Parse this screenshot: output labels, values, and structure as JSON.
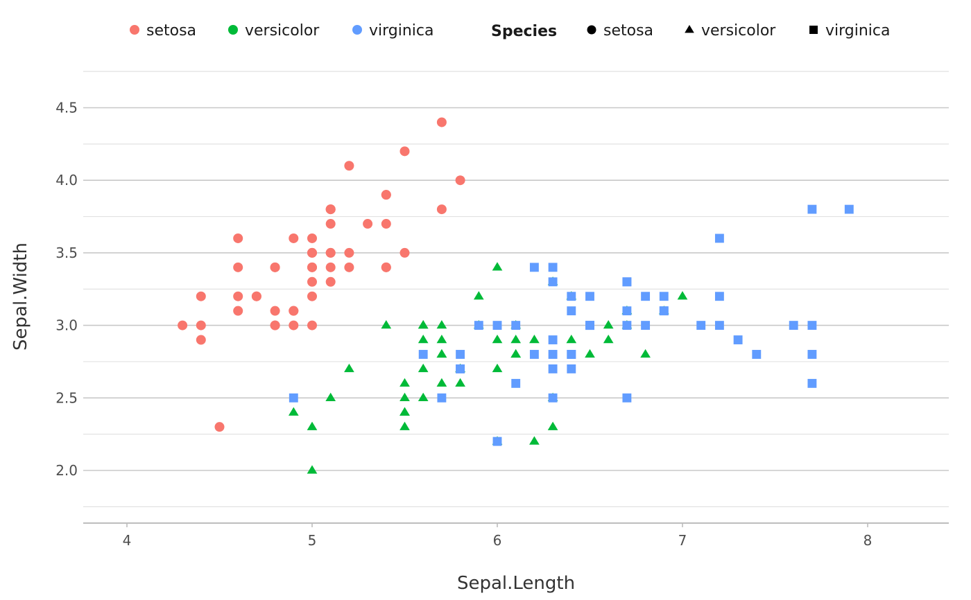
{
  "chart_data": {
    "type": "scatter",
    "xlabel": "Sepal.Length",
    "ylabel": "Sepal.Width",
    "xlim": [
      3.77,
      8.44
    ],
    "ylim": [
      1.65,
      4.75
    ],
    "x_ticks": [
      4,
      5,
      6,
      7,
      8
    ],
    "x_tick_labels": [
      "4",
      "5",
      "6",
      "7",
      "8"
    ],
    "y_ticks": [
      2.0,
      2.5,
      3.0,
      3.5,
      4.0,
      4.5
    ],
    "y_tick_labels": [
      "2.0",
      "2.5",
      "3.0",
      "3.5",
      "4.0",
      "4.5"
    ],
    "grid": true,
    "legend_position": "top",
    "color_legend": {
      "entries": [
        "setosa",
        "versicolor",
        "virginica"
      ]
    },
    "shape_legend": {
      "title": "Species",
      "entries": [
        "setosa",
        "versicolor",
        "virginica"
      ]
    },
    "series": [
      {
        "name": "setosa",
        "color": "#F8766D",
        "shape": "circle",
        "points": [
          [
            5.1,
            3.5
          ],
          [
            4.9,
            3.0
          ],
          [
            4.7,
            3.2
          ],
          [
            4.6,
            3.1
          ],
          [
            5.0,
            3.6
          ],
          [
            5.4,
            3.9
          ],
          [
            4.6,
            3.4
          ],
          [
            5.0,
            3.4
          ],
          [
            4.4,
            2.9
          ],
          [
            4.9,
            3.1
          ],
          [
            5.4,
            3.7
          ],
          [
            4.8,
            3.4
          ],
          [
            4.8,
            3.0
          ],
          [
            4.3,
            3.0
          ],
          [
            5.8,
            4.0
          ],
          [
            5.7,
            4.4
          ],
          [
            5.4,
            3.9
          ],
          [
            5.1,
            3.5
          ],
          [
            5.7,
            3.8
          ],
          [
            5.1,
            3.8
          ],
          [
            5.4,
            3.4
          ],
          [
            5.1,
            3.7
          ],
          [
            4.6,
            3.6
          ],
          [
            5.1,
            3.3
          ],
          [
            4.8,
            3.4
          ],
          [
            5.0,
            3.0
          ],
          [
            5.0,
            3.4
          ],
          [
            5.2,
            3.5
          ],
          [
            5.2,
            3.4
          ],
          [
            4.7,
            3.2
          ],
          [
            4.8,
            3.1
          ],
          [
            5.4,
            3.4
          ],
          [
            5.2,
            4.1
          ],
          [
            5.5,
            4.2
          ],
          [
            4.9,
            3.1
          ],
          [
            5.0,
            3.2
          ],
          [
            5.5,
            3.5
          ],
          [
            4.9,
            3.6
          ],
          [
            4.4,
            3.0
          ],
          [
            5.1,
            3.4
          ],
          [
            5.0,
            3.5
          ],
          [
            4.5,
            2.3
          ],
          [
            4.4,
            3.2
          ],
          [
            5.0,
            3.5
          ],
          [
            5.1,
            3.8
          ],
          [
            4.8,
            3.0
          ],
          [
            5.1,
            3.8
          ],
          [
            4.6,
            3.2
          ],
          [
            5.3,
            3.7
          ],
          [
            5.0,
            3.3
          ]
        ]
      },
      {
        "name": "versicolor",
        "color": "#00BA38",
        "shape": "triangle",
        "points": [
          [
            7.0,
            3.2
          ],
          [
            6.4,
            3.2
          ],
          [
            6.9,
            3.1
          ],
          [
            5.5,
            2.3
          ],
          [
            6.5,
            2.8
          ],
          [
            5.7,
            2.8
          ],
          [
            6.3,
            3.3
          ],
          [
            4.9,
            2.4
          ],
          [
            6.6,
            2.9
          ],
          [
            5.2,
            2.7
          ],
          [
            5.0,
            2.0
          ],
          [
            5.9,
            3.0
          ],
          [
            6.0,
            2.2
          ],
          [
            6.1,
            2.9
          ],
          [
            5.6,
            2.9
          ],
          [
            6.7,
            3.1
          ],
          [
            5.6,
            3.0
          ],
          [
            5.8,
            2.7
          ],
          [
            6.2,
            2.2
          ],
          [
            5.6,
            2.5
          ],
          [
            5.9,
            3.2
          ],
          [
            6.1,
            2.8
          ],
          [
            6.3,
            2.5
          ],
          [
            6.1,
            2.8
          ],
          [
            6.4,
            2.9
          ],
          [
            6.6,
            3.0
          ],
          [
            6.8,
            2.8
          ],
          [
            6.7,
            3.0
          ],
          [
            6.0,
            2.9
          ],
          [
            5.7,
            2.6
          ],
          [
            5.5,
            2.4
          ],
          [
            5.5,
            2.4
          ],
          [
            5.8,
            2.7
          ],
          [
            6.0,
            2.7
          ],
          [
            5.4,
            3.0
          ],
          [
            6.0,
            3.4
          ],
          [
            6.7,
            3.1
          ],
          [
            6.3,
            2.3
          ],
          [
            5.6,
            3.0
          ],
          [
            5.5,
            2.5
          ],
          [
            5.5,
            2.6
          ],
          [
            6.1,
            3.0
          ],
          [
            5.8,
            2.6
          ],
          [
            5.0,
            2.3
          ],
          [
            5.6,
            2.7
          ],
          [
            5.7,
            3.0
          ],
          [
            5.7,
            2.9
          ],
          [
            6.2,
            2.9
          ],
          [
            5.1,
            2.5
          ],
          [
            5.7,
            2.8
          ]
        ]
      },
      {
        "name": "virginica",
        "color": "#619CFF",
        "shape": "square",
        "points": [
          [
            6.3,
            3.3
          ],
          [
            5.8,
            2.7
          ],
          [
            7.1,
            3.0
          ],
          [
            6.3,
            2.9
          ],
          [
            6.5,
            3.0
          ],
          [
            7.6,
            3.0
          ],
          [
            4.9,
            2.5
          ],
          [
            7.3,
            2.9
          ],
          [
            6.7,
            2.5
          ],
          [
            7.2,
            3.6
          ],
          [
            6.5,
            3.2
          ],
          [
            6.4,
            2.7
          ],
          [
            6.8,
            3.0
          ],
          [
            5.7,
            2.5
          ],
          [
            5.8,
            2.8
          ],
          [
            6.4,
            3.2
          ],
          [
            6.5,
            3.0
          ],
          [
            7.7,
            3.8
          ],
          [
            7.7,
            2.6
          ],
          [
            6.0,
            2.2
          ],
          [
            6.9,
            3.2
          ],
          [
            5.6,
            2.8
          ],
          [
            7.7,
            2.8
          ],
          [
            6.3,
            2.7
          ],
          [
            6.7,
            3.3
          ],
          [
            7.2,
            3.2
          ],
          [
            6.2,
            2.8
          ],
          [
            6.1,
            3.0
          ],
          [
            6.4,
            2.8
          ],
          [
            7.2,
            3.0
          ],
          [
            7.4,
            2.8
          ],
          [
            7.9,
            3.8
          ],
          [
            6.4,
            2.8
          ],
          [
            6.3,
            2.8
          ],
          [
            6.1,
            2.6
          ],
          [
            7.7,
            3.0
          ],
          [
            6.3,
            3.4
          ],
          [
            6.4,
            3.1
          ],
          [
            6.0,
            3.0
          ],
          [
            6.9,
            3.1
          ],
          [
            6.7,
            3.1
          ],
          [
            6.9,
            3.1
          ],
          [
            5.8,
            2.7
          ],
          [
            6.8,
            3.2
          ],
          [
            6.7,
            3.3
          ],
          [
            6.7,
            3.0
          ],
          [
            6.3,
            2.5
          ],
          [
            6.5,
            3.0
          ],
          [
            6.2,
            3.4
          ],
          [
            5.9,
            3.0
          ]
        ]
      }
    ]
  }
}
